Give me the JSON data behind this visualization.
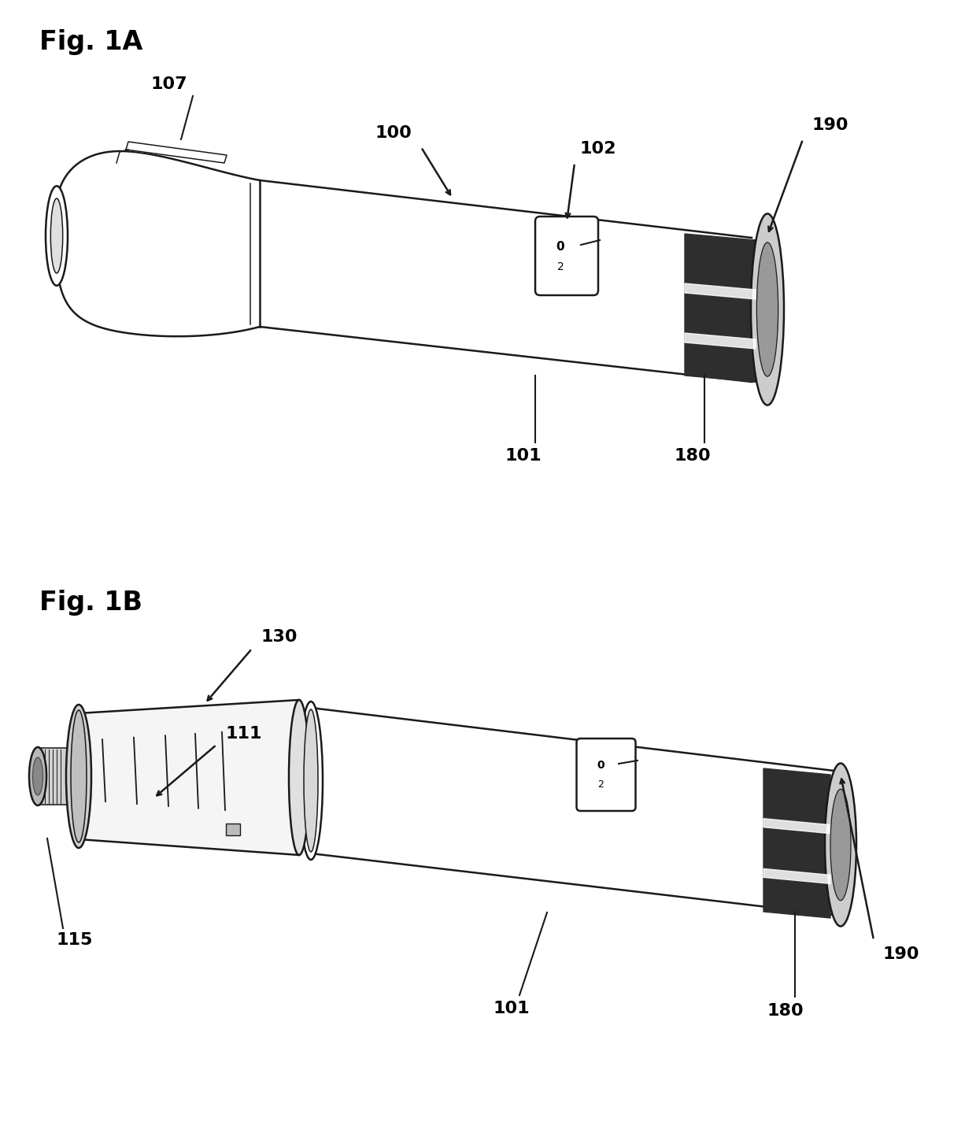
{
  "fig_label_1a": "Fig. 1A",
  "fig_label_1b": "Fig. 1B",
  "background_color": "#ffffff",
  "line_color": "#1a1a1a",
  "label_fontsize": 16,
  "fig_label_fontsize": 24
}
